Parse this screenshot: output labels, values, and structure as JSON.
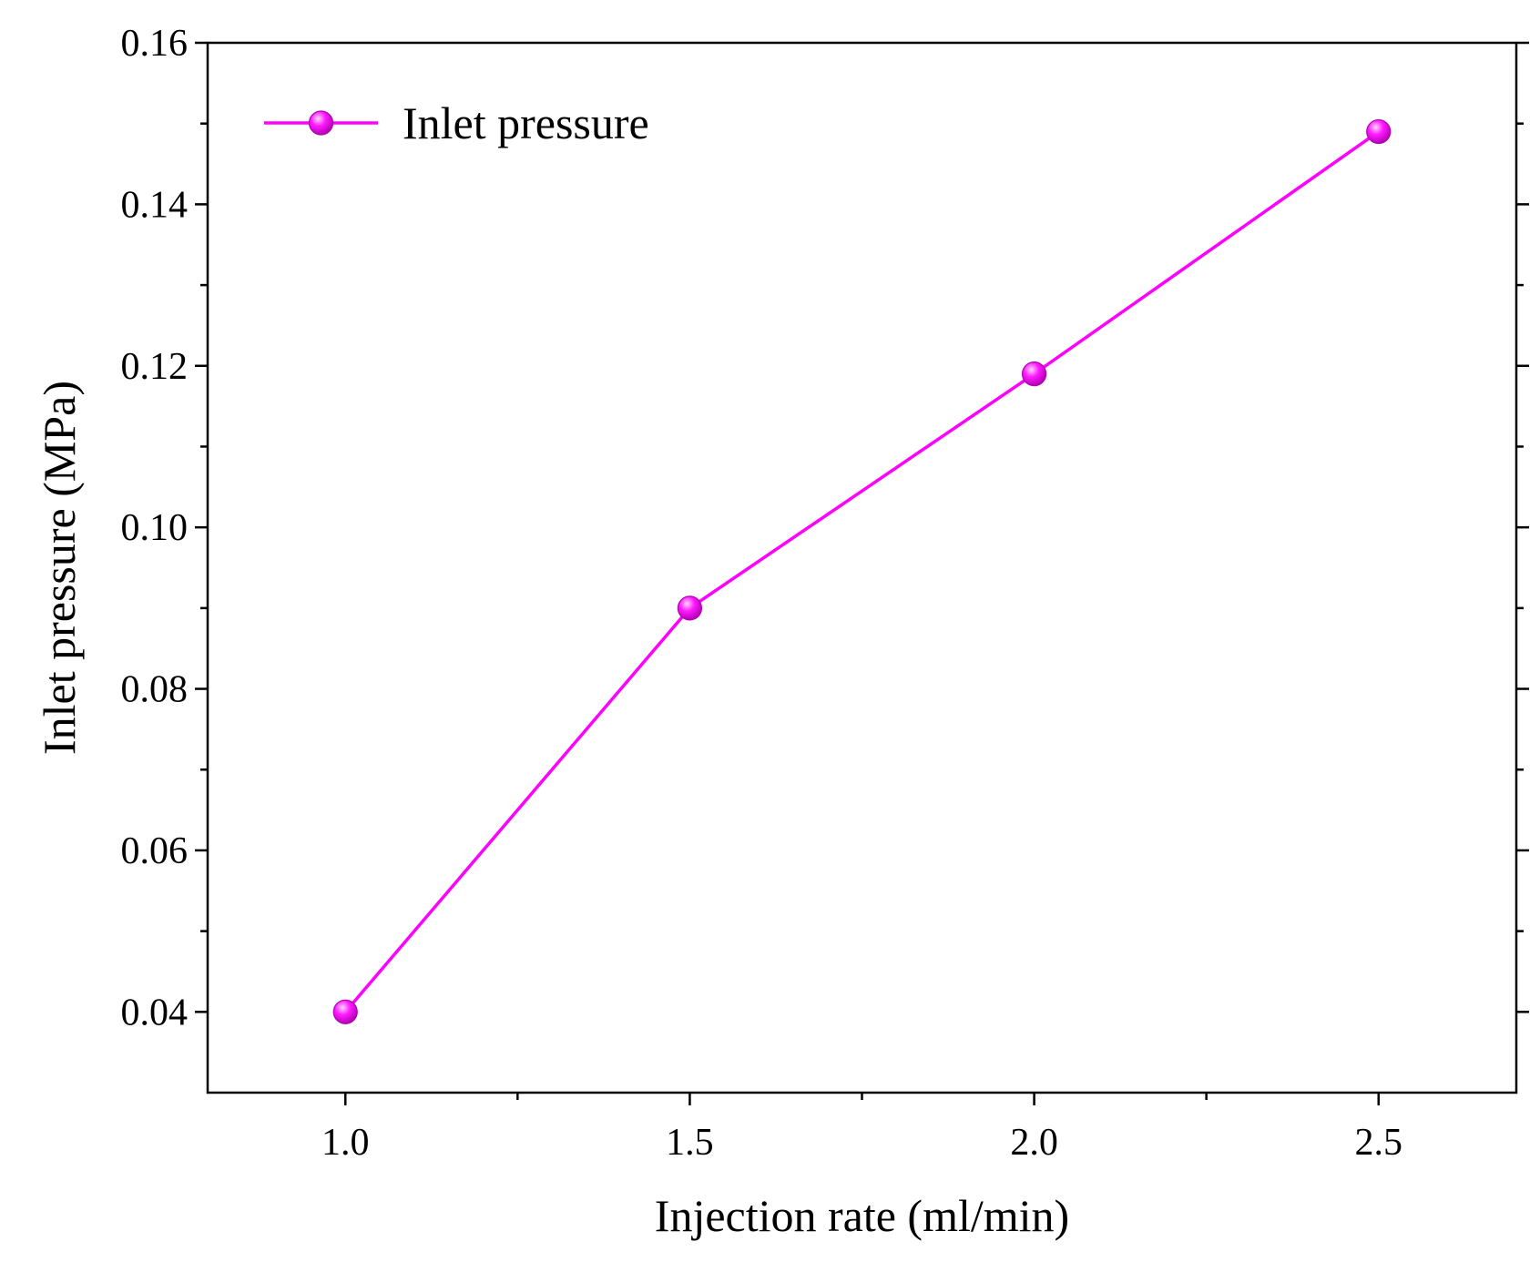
{
  "colors": {
    "series": "#ff00ff",
    "marker_fill": "#ff1aff",
    "marker_highlight": "#ffd6ff",
    "marker_edge": "#b000b0",
    "axis": "#000000"
  },
  "chart_data": {
    "type": "line",
    "title": "",
    "xlabel": "Injection rate (ml/min)",
    "ylabel": "Inlet pressure (MPa)",
    "xlim": [
      0.8,
      2.7
    ],
    "ylim": [
      0.03,
      0.16
    ],
    "x_ticks": [
      1.0,
      1.5,
      2.0,
      2.5
    ],
    "x_tick_labels": [
      "1.0",
      "1.5",
      "2.0",
      "2.5"
    ],
    "x_minor_ticks": [
      1.25,
      1.75,
      2.25
    ],
    "y_ticks": [
      0.04,
      0.06,
      0.08,
      0.1,
      0.12,
      0.14,
      0.16
    ],
    "y_tick_labels": [
      "0.04",
      "0.06",
      "0.08",
      "0.10",
      "0.12",
      "0.14",
      "0.16"
    ],
    "y_minor_ticks": [
      0.05,
      0.07,
      0.09,
      0.11,
      0.13,
      0.15
    ],
    "grid": false,
    "legend_position": "top-left",
    "series": [
      {
        "name": "Inlet pressure",
        "marker": "sphere",
        "x": [
          1.0,
          1.5,
          2.0,
          2.5
        ],
        "y": [
          0.04,
          0.09,
          0.119,
          0.149
        ]
      }
    ]
  }
}
